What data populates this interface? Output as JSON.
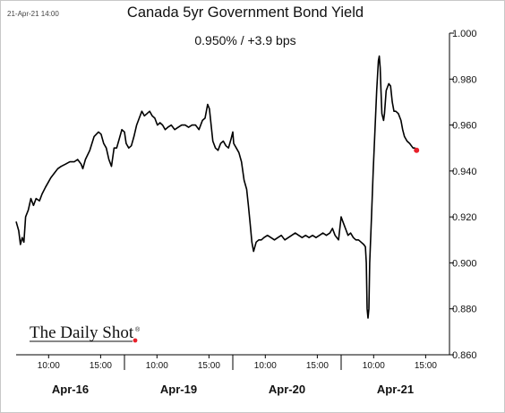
{
  "header": {
    "timestamp": "21-Apr-21 14:00",
    "title": "Canada 5yr Government Bond Yield",
    "subtitle": "0.950%  /  +3.9 bps"
  },
  "logo": {
    "text": "The Daily Shot",
    "mark": "®"
  },
  "colors": {
    "line": "#000000",
    "last_point": "#e8202a",
    "axis": "#000000",
    "logo_dot": "#e8202a"
  },
  "chart_data": {
    "type": "line",
    "title": "Canada 5yr Government Bond Yield",
    "subtitle": "0.950%  /  +3.9 bps",
    "ylim": [
      0.86,
      1.0
    ],
    "y_axis_side": "right",
    "y_ticks": [
      "0.860",
      "0.880",
      "0.900",
      "0.920",
      "0.940",
      "0.960",
      "0.980",
      "1.000"
    ],
    "grid": false,
    "legend": "none",
    "x_range": [
      0,
      4
    ],
    "day_boundaries": [
      1,
      2,
      3
    ],
    "x_ticks": [
      {
        "x": 0.3,
        "label": "10:00"
      },
      {
        "x": 0.78,
        "label": "15:00"
      },
      {
        "x": 1.3,
        "label": "10:00"
      },
      {
        "x": 1.78,
        "label": "15:00"
      },
      {
        "x": 2.3,
        "label": "10:00"
      },
      {
        "x": 2.78,
        "label": "15:00"
      },
      {
        "x": 3.3,
        "label": "10:00"
      },
      {
        "x": 3.78,
        "label": "15:00"
      }
    ],
    "day_labels": [
      {
        "x": 0.5,
        "label": "Apr-16"
      },
      {
        "x": 1.5,
        "label": "Apr-19"
      },
      {
        "x": 2.5,
        "label": "Apr-20"
      },
      {
        "x": 3.5,
        "label": "Apr-21"
      }
    ],
    "series": [
      {
        "points": [
          [
            0.0,
            0.918
          ],
          [
            0.024,
            0.914
          ],
          [
            0.04,
            0.908
          ],
          [
            0.056,
            0.911
          ],
          [
            0.072,
            0.909
          ],
          [
            0.088,
            0.92
          ],
          [
            0.112,
            0.923
          ],
          [
            0.136,
            0.928
          ],
          [
            0.16,
            0.925
          ],
          [
            0.184,
            0.928
          ],
          [
            0.216,
            0.927
          ],
          [
            0.24,
            0.93
          ],
          [
            0.272,
            0.933
          ],
          [
            0.296,
            0.935
          ],
          [
            0.32,
            0.937
          ],
          [
            0.352,
            0.939
          ],
          [
            0.384,
            0.941
          ],
          [
            0.416,
            0.942
          ],
          [
            0.456,
            0.943
          ],
          [
            0.496,
            0.944
          ],
          [
            0.536,
            0.944
          ],
          [
            0.568,
            0.945
          ],
          [
            0.6,
            0.943
          ],
          [
            0.616,
            0.941
          ],
          [
            0.64,
            0.945
          ],
          [
            0.68,
            0.949
          ],
          [
            0.72,
            0.955
          ],
          [
            0.76,
            0.957
          ],
          [
            0.784,
            0.956
          ],
          [
            0.808,
            0.952
          ],
          [
            0.832,
            0.95
          ],
          [
            0.856,
            0.945
          ],
          [
            0.88,
            0.942
          ],
          [
            0.904,
            0.95
          ],
          [
            0.928,
            0.95
          ],
          [
            0.952,
            0.954
          ],
          [
            0.976,
            0.958
          ],
          [
            1.0,
            0.957
          ],
          [
            1.016,
            0.952
          ],
          [
            1.04,
            0.95
          ],
          [
            1.064,
            0.951
          ],
          [
            1.088,
            0.955
          ],
          [
            1.112,
            0.96
          ],
          [
            1.136,
            0.963
          ],
          [
            1.16,
            0.966
          ],
          [
            1.184,
            0.964
          ],
          [
            1.208,
            0.965
          ],
          [
            1.232,
            0.966
          ],
          [
            1.256,
            0.964
          ],
          [
            1.28,
            0.963
          ],
          [
            1.304,
            0.96
          ],
          [
            1.328,
            0.961
          ],
          [
            1.352,
            0.96
          ],
          [
            1.376,
            0.958
          ],
          [
            1.4,
            0.959
          ],
          [
            1.432,
            0.96
          ],
          [
            1.464,
            0.958
          ],
          [
            1.496,
            0.959
          ],
          [
            1.528,
            0.96
          ],
          [
            1.56,
            0.96
          ],
          [
            1.592,
            0.959
          ],
          [
            1.624,
            0.96
          ],
          [
            1.656,
            0.96
          ],
          [
            1.688,
            0.958
          ],
          [
            1.72,
            0.962
          ],
          [
            1.744,
            0.963
          ],
          [
            1.768,
            0.969
          ],
          [
            1.784,
            0.967
          ],
          [
            1.8,
            0.96
          ],
          [
            1.816,
            0.953
          ],
          [
            1.84,
            0.95
          ],
          [
            1.864,
            0.949
          ],
          [
            1.888,
            0.952
          ],
          [
            1.912,
            0.953
          ],
          [
            1.936,
            0.951
          ],
          [
            1.96,
            0.95
          ],
          [
            1.984,
            0.954
          ],
          [
            2.0,
            0.957
          ],
          [
            2.008,
            0.952
          ],
          [
            2.032,
            0.95
          ],
          [
            2.056,
            0.948
          ],
          [
            2.08,
            0.944
          ],
          [
            2.104,
            0.936
          ],
          [
            2.128,
            0.932
          ],
          [
            2.144,
            0.925
          ],
          [
            2.16,
            0.917
          ],
          [
            2.176,
            0.909
          ],
          [
            2.192,
            0.905
          ],
          [
            2.216,
            0.909
          ],
          [
            2.24,
            0.91
          ],
          [
            2.264,
            0.91
          ],
          [
            2.288,
            0.911
          ],
          [
            2.32,
            0.912
          ],
          [
            2.352,
            0.911
          ],
          [
            2.384,
            0.91
          ],
          [
            2.416,
            0.911
          ],
          [
            2.448,
            0.912
          ],
          [
            2.48,
            0.91
          ],
          [
            2.512,
            0.911
          ],
          [
            2.544,
            0.912
          ],
          [
            2.576,
            0.913
          ],
          [
            2.608,
            0.912
          ],
          [
            2.64,
            0.911
          ],
          [
            2.672,
            0.912
          ],
          [
            2.704,
            0.911
          ],
          [
            2.736,
            0.912
          ],
          [
            2.768,
            0.911
          ],
          [
            2.8,
            0.912
          ],
          [
            2.832,
            0.913
          ],
          [
            2.864,
            0.912
          ],
          [
            2.896,
            0.913
          ],
          [
            2.92,
            0.915
          ],
          [
            2.944,
            0.912
          ],
          [
            2.976,
            0.91
          ],
          [
            3.0,
            0.92
          ],
          [
            3.016,
            0.918
          ],
          [
            3.04,
            0.915
          ],
          [
            3.064,
            0.912
          ],
          [
            3.088,
            0.913
          ],
          [
            3.112,
            0.911
          ],
          [
            3.136,
            0.91
          ],
          [
            3.16,
            0.91
          ],
          [
            3.184,
            0.909
          ],
          [
            3.208,
            0.908
          ],
          [
            3.224,
            0.907
          ],
          [
            3.232,
            0.9
          ],
          [
            3.24,
            0.88
          ],
          [
            3.248,
            0.876
          ],
          [
            3.256,
            0.88
          ],
          [
            3.264,
            0.9
          ],
          [
            3.28,
            0.92
          ],
          [
            3.296,
            0.94
          ],
          [
            3.312,
            0.958
          ],
          [
            3.328,
            0.975
          ],
          [
            3.344,
            0.988
          ],
          [
            3.352,
            0.99
          ],
          [
            3.36,
            0.985
          ],
          [
            3.368,
            0.975
          ],
          [
            3.376,
            0.965
          ],
          [
            3.392,
            0.962
          ],
          [
            3.4,
            0.965
          ],
          [
            3.416,
            0.975
          ],
          [
            3.44,
            0.978
          ],
          [
            3.456,
            0.977
          ],
          [
            3.472,
            0.97
          ],
          [
            3.488,
            0.966
          ],
          [
            3.504,
            0.966
          ],
          [
            3.528,
            0.965
          ],
          [
            3.552,
            0.962
          ],
          [
            3.568,
            0.958
          ],
          [
            3.584,
            0.955
          ],
          [
            3.608,
            0.953
          ],
          [
            3.632,
            0.952
          ],
          [
            3.648,
            0.951
          ],
          [
            3.664,
            0.95
          ],
          [
            3.68,
            0.95
          ],
          [
            3.696,
            0.949
          ]
        ]
      }
    ]
  }
}
